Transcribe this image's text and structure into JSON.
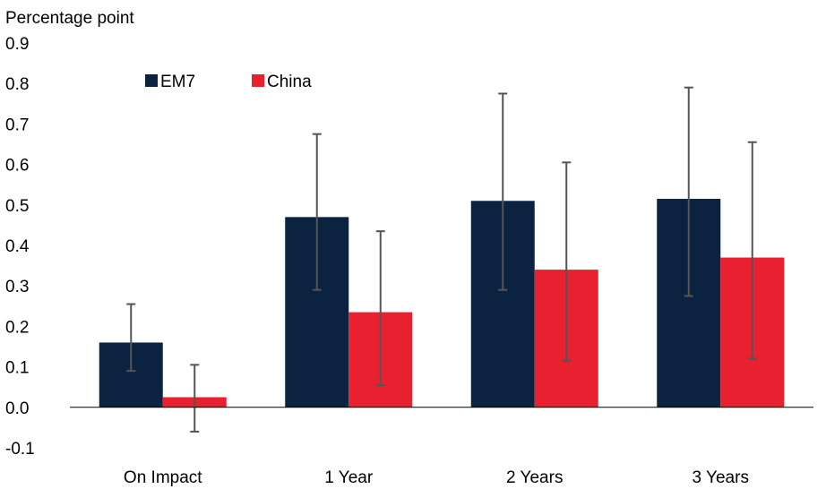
{
  "chart_data": {
    "type": "bar",
    "ylabel": "Percentage point",
    "categories": [
      "On Impact",
      "1 Year",
      "2 Years",
      "3 Years"
    ],
    "ylim": [
      -0.1,
      0.9
    ],
    "yticks": [
      "0.9",
      "0.8",
      "0.7",
      "0.6",
      "0.5",
      "0.4",
      "0.3",
      "0.2",
      "0.1",
      "0.0",
      "-0.1"
    ],
    "legend_position": "top-left",
    "grid": false,
    "series": [
      {
        "name": "EM7",
        "color": "#0b2341",
        "values": [
          0.16,
          0.47,
          0.51,
          0.515
        ],
        "error_low": [
          0.09,
          0.29,
          0.29,
          0.275
        ],
        "error_high": [
          0.255,
          0.675,
          0.775,
          0.79
        ]
      },
      {
        "name": "China",
        "color": "#e8202f",
        "values": [
          0.025,
          0.235,
          0.34,
          0.37
        ],
        "error_low": [
          -0.06,
          0.055,
          0.115,
          0.12
        ],
        "error_high": [
          0.105,
          0.435,
          0.605,
          0.655
        ]
      }
    ],
    "error_bar_color": "#555555"
  }
}
